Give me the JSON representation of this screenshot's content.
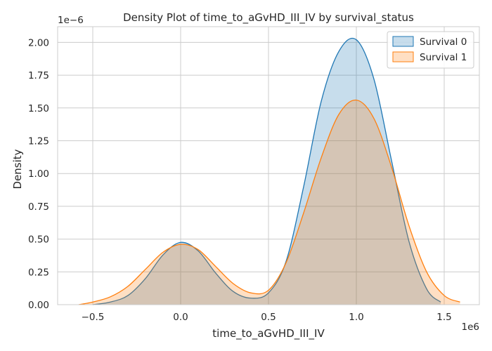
{
  "chart_data": {
    "type": "area",
    "title": "Density Plot of time_to_aGvHD_III_IV by survival_status",
    "xlabel": "time_to_aGvHD_III_IV",
    "ylabel": "Density",
    "x_scale_label": "1e6",
    "y_scale_label": "1e−6",
    "xlim": [
      -0.7,
      1.7
    ],
    "ylim": [
      0,
      2.12
    ],
    "xticks": [
      -0.5,
      0.0,
      0.5,
      1.0,
      1.5
    ],
    "xtick_labels": [
      "−0.5",
      "0.0",
      "0.5",
      "1.0",
      "1.5"
    ],
    "yticks": [
      0.0,
      0.25,
      0.5,
      0.75,
      1.0,
      1.25,
      1.5,
      1.75,
      2.0
    ],
    "ytick_labels": [
      "0.00",
      "0.25",
      "0.50",
      "0.75",
      "1.00",
      "1.25",
      "1.50",
      "1.75",
      "2.00"
    ],
    "grid": true,
    "legend_position": "top-right",
    "series": [
      {
        "name": "Survival 0",
        "line_color": "#1f77b4",
        "fill_color": "#1f77b4",
        "x": [
          -0.5,
          -0.4,
          -0.3,
          -0.2,
          -0.1,
          0.0,
          0.1,
          0.2,
          0.3,
          0.4,
          0.5,
          0.6,
          0.7,
          0.8,
          0.9,
          1.0,
          1.1,
          1.2,
          1.3,
          1.4,
          1.48
        ],
        "y": [
          0.0,
          0.02,
          0.07,
          0.2,
          0.38,
          0.475,
          0.41,
          0.24,
          0.1,
          0.05,
          0.09,
          0.33,
          0.9,
          1.55,
          1.93,
          2.02,
          1.72,
          1.1,
          0.48,
          0.12,
          0.02
        ]
      },
      {
        "name": "Survival 1",
        "line_color": "#ff7f0e",
        "fill_color": "#ff7f0e",
        "x": [
          -0.58,
          -0.5,
          -0.4,
          -0.3,
          -0.2,
          -0.1,
          0.0,
          0.1,
          0.2,
          0.3,
          0.4,
          0.5,
          0.6,
          0.7,
          0.8,
          0.9,
          1.0,
          1.1,
          1.2,
          1.3,
          1.4,
          1.5,
          1.59
        ],
        "y": [
          0.0,
          0.02,
          0.06,
          0.14,
          0.27,
          0.4,
          0.46,
          0.42,
          0.29,
          0.16,
          0.09,
          0.11,
          0.32,
          0.7,
          1.12,
          1.45,
          1.56,
          1.42,
          1.05,
          0.6,
          0.25,
          0.07,
          0.02
        ]
      }
    ]
  }
}
